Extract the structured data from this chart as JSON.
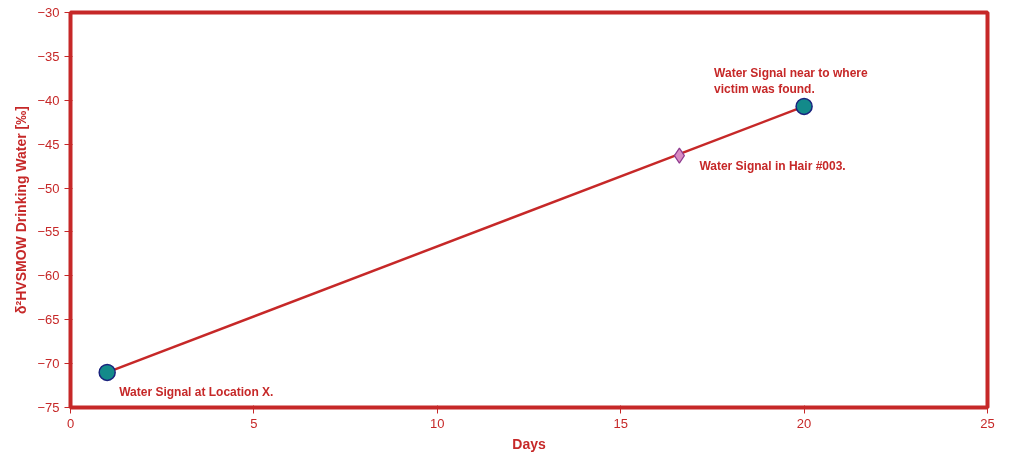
{
  "chart_data": {
    "type": "line",
    "xlabel": "Days",
    "ylabel": "δ²HVSMOW Drinking Water [‰]",
    "xlim": [
      0,
      25
    ],
    "xticks": [
      0,
      5,
      10,
      15,
      20,
      25
    ],
    "ylim": [
      -75,
      -30
    ],
    "yticks": [
      -75,
      -70,
      -65,
      -60,
      -55,
      -50,
      -45,
      -40,
      -35,
      -30
    ],
    "grid": false,
    "marker": "circle",
    "line_style": "solid",
    "series": [
      {
        "color": "#c62828",
        "x": [
          1,
          20
        ],
        "values": [
          -71,
          -40.7
        ]
      },
      {
        "type": "scatter",
        "color": "#d98bc4",
        "marker": "diamond",
        "x": [
          16.6
        ],
        "values": [
          -46.3
        ]
      }
    ],
    "annotations": [
      {
        "text": "Water Signal at Location X.",
        "x": 1,
        "y": -71
      },
      {
        "text": "Water Signal in Hair #003.",
        "x": 16.6,
        "y": -46.3
      },
      {
        "text": "Water Signal near to where\nvictim was found.",
        "x": 20,
        "y": -40.7
      }
    ]
  }
}
